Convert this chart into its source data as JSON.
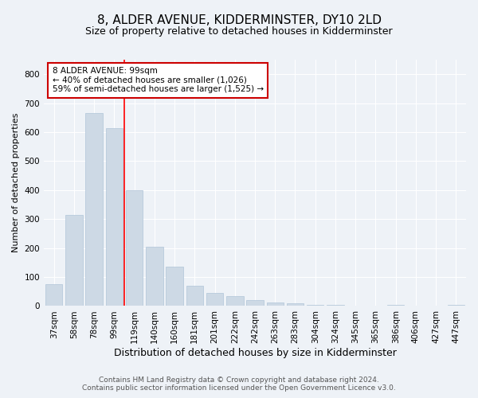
{
  "title": "8, ALDER AVENUE, KIDDERMINSTER, DY10 2LD",
  "subtitle": "Size of property relative to detached houses in Kidderminster",
  "xlabel": "Distribution of detached houses by size in Kidderminster",
  "ylabel": "Number of detached properties",
  "categories": [
    "37sqm",
    "58sqm",
    "78sqm",
    "99sqm",
    "119sqm",
    "140sqm",
    "160sqm",
    "181sqm",
    "201sqm",
    "222sqm",
    "242sqm",
    "263sqm",
    "283sqm",
    "304sqm",
    "324sqm",
    "345sqm",
    "365sqm",
    "386sqm",
    "406sqm",
    "427sqm",
    "447sqm"
  ],
  "values": [
    75,
    315,
    665,
    615,
    400,
    205,
    135,
    70,
    45,
    35,
    20,
    12,
    10,
    5,
    5,
    0,
    0,
    5,
    0,
    0,
    5
  ],
  "bar_color": "#cdd9e5",
  "bar_edge_color": "#b0c4d8",
  "red_line_index": 3,
  "annotation_text": "8 ALDER AVENUE: 99sqm\n← 40% of detached houses are smaller (1,026)\n59% of semi-detached houses are larger (1,525) →",
  "annotation_box_color": "#ffffff",
  "annotation_box_edge": "#cc0000",
  "footnote1": "Contains HM Land Registry data © Crown copyright and database right 2024.",
  "footnote2": "Contains public sector information licensed under the Open Government Licence v3.0.",
  "ylim": [
    0,
    850
  ],
  "yticks": [
    0,
    100,
    200,
    300,
    400,
    500,
    600,
    700,
    800
  ],
  "title_fontsize": 11,
  "subtitle_fontsize": 9,
  "xlabel_fontsize": 9,
  "ylabel_fontsize": 8,
  "tick_fontsize": 7.5,
  "annotation_fontsize": 7.5,
  "footnote_fontsize": 6.5,
  "bg_color": "#eef2f7",
  "plot_bg_color": "#eef2f7"
}
